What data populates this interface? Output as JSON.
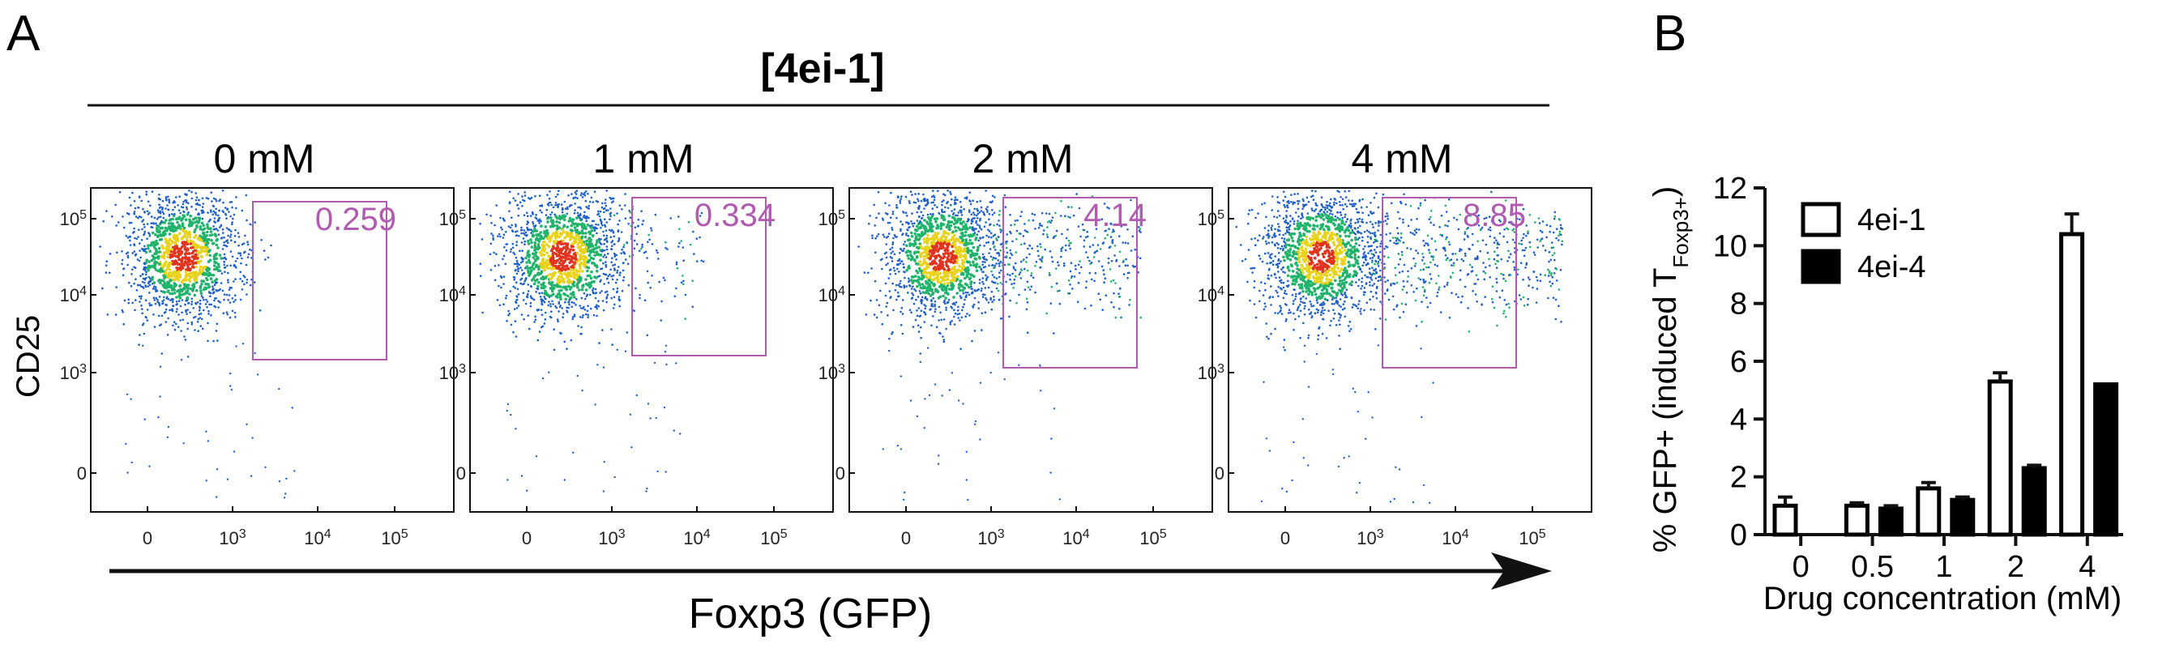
{
  "panel_a": {
    "letter": "A",
    "header": "[4ei-1]",
    "y_label": "CD25",
    "x_label": "Foxp3 (GFP)",
    "y_ticks": [
      {
        "base": "10",
        "exp": "5"
      },
      {
        "base": "10",
        "exp": "4"
      },
      {
        "base": "10",
        "exp": "3"
      },
      {
        "base": "0",
        "exp": ""
      }
    ],
    "x_ticks": [
      {
        "base": "0",
        "exp": ""
      },
      {
        "base": "10",
        "exp": "3"
      },
      {
        "base": "10",
        "exp": "4"
      },
      {
        "base": "10",
        "exp": "5"
      }
    ],
    "plots": [
      {
        "concentration": "0 mM",
        "gate_value": "0.259",
        "spread": 0.0,
        "positive_fraction": 0.00259
      },
      {
        "concentration": "1 mM",
        "gate_value": "0.334",
        "spread": 0.15,
        "positive_fraction": 0.00334
      },
      {
        "concentration": "2 mM",
        "gate_value": "4.14",
        "spread": 0.55,
        "positive_fraction": 0.0414
      },
      {
        "concentration": "4 mM",
        "gate_value": "8.85",
        "spread": 0.85,
        "positive_fraction": 0.0885
      }
    ],
    "colors": {
      "gate": "#b05ab0",
      "density_low": "#1f5fc9",
      "density_mid": "#21b36b",
      "density_high": "#e8d21a",
      "density_peak": "#e0341f"
    }
  },
  "chart_data": {
    "type": "bar",
    "panel_letter": "B",
    "categories": [
      "0",
      "0.5",
      "1",
      "2",
      "4"
    ],
    "series": [
      {
        "name": "4ei-1",
        "values": [
          1.0,
          1.0,
          1.6,
          5.3,
          10.4
        ],
        "errors": [
          0.3,
          0.1,
          0.2,
          0.3,
          0.7
        ],
        "fill": "#ffffff",
        "stroke": "#000000"
      },
      {
        "name": "4ei-4",
        "values": [
          null,
          0.9,
          1.2,
          2.3,
          5.2
        ],
        "errors": [
          null,
          0.1,
          0.1,
          0.1,
          0.0
        ],
        "fill": "#000000",
        "stroke": "#000000"
      }
    ],
    "xlabel": "Drug concentration (mM)",
    "ylabel_main": "% GFP+ (induced T",
    "ylabel_sub": "Foxp3+",
    "ylabel_end": ")",
    "ylim": [
      0,
      12
    ],
    "yticks": [
      0,
      2,
      4,
      6,
      8,
      10,
      12
    ],
    "legend_position": "top-left"
  }
}
